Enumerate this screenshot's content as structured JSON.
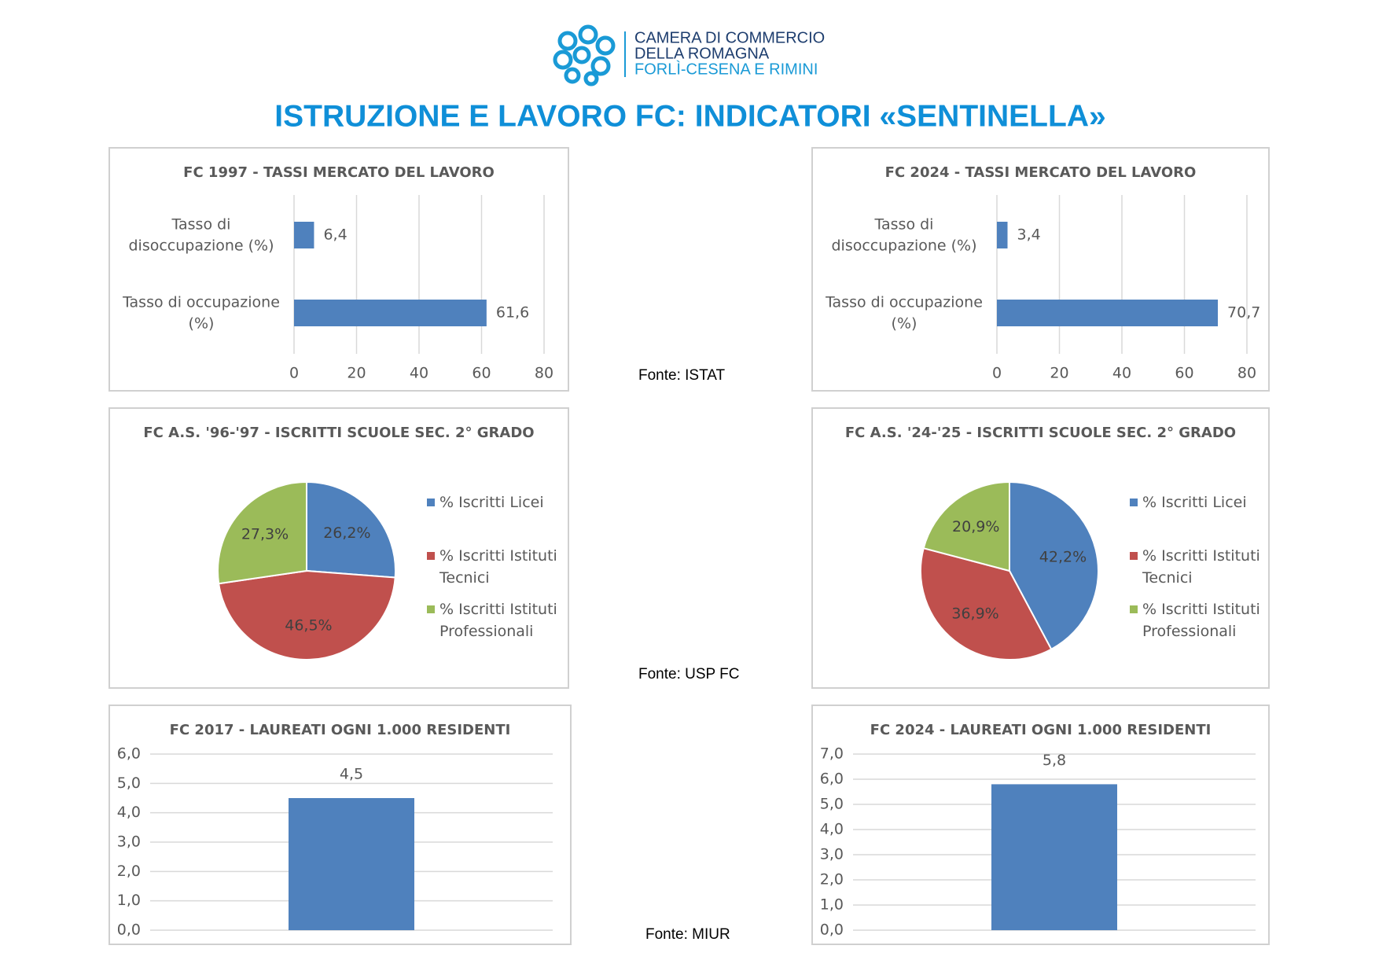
{
  "header": {
    "org_lines": [
      "CAMERA DI COMMERCIO",
      "DELLA ROMAGNA",
      "FORLÌ-CESENA E RIMINI"
    ]
  },
  "title": "ISTRUZIONE E LAVORO FC: INDICATORI «SENTINELLA»",
  "sources": [
    "Fonte: ISTAT",
    "Fonte: USP FC",
    "Fonte: MIUR"
  ],
  "chart_data": [
    {
      "type": "barh",
      "title": "FC 1997 - TASSI MERCATO DEL LAVORO",
      "categories": [
        "Tasso di disoccupazione (%)",
        "Tasso di occupazione (%)"
      ],
      "values": [
        6.4,
        61.6
      ],
      "value_labels": [
        "6,4",
        "61,6"
      ],
      "color": "#4f81bd",
      "xlim": [
        0,
        80
      ],
      "xticks": [
        0,
        20,
        40,
        60,
        80
      ],
      "grid": true
    },
    {
      "type": "barh",
      "title": "FC 2024 - TASSI MERCATO DEL LAVORO",
      "categories": [
        "Tasso di disoccupazione (%)",
        "Tasso di occupazione (%)"
      ],
      "values": [
        3.4,
        70.7
      ],
      "value_labels": [
        "3,4",
        "70,7"
      ],
      "color": "#4f81bd",
      "xlim": [
        0,
        80
      ],
      "xticks": [
        0,
        20,
        40,
        60,
        80
      ],
      "grid": true
    },
    {
      "type": "pie",
      "title": "FC A.S. '96-'97 - ISCRITTI SCUOLE SEC. 2° GRADO",
      "categories": [
        "% Iscritti Licei",
        "% Iscritti Istituti Tecnici",
        "% Iscritti Istituti Professionali"
      ],
      "values": [
        26.2,
        46.5,
        27.3
      ],
      "value_labels": [
        "26,2%",
        "46,5%",
        "27,3%"
      ],
      "colors": [
        "#4f81bd",
        "#c0504d",
        "#9bbb59"
      ],
      "legend": "right"
    },
    {
      "type": "pie",
      "title": "FC A.S. '24-'25 - ISCRITTI SCUOLE SEC. 2° GRADO",
      "categories": [
        "% Iscritti Licei",
        "% Iscritti Istituti Tecnici",
        "% Iscritti Istituti Professionali"
      ],
      "values": [
        42.2,
        36.9,
        20.9
      ],
      "value_labels": [
        "42,2%",
        "36,9%",
        "20,9%"
      ],
      "colors": [
        "#4f81bd",
        "#c0504d",
        "#9bbb59"
      ],
      "legend": "right"
    },
    {
      "type": "bar",
      "title": "FC 2017 - LAUREATI OGNI 1.000 RESIDENTI",
      "categories": [
        null
      ],
      "values": [
        4.5
      ],
      "value_labels": [
        "4,5"
      ],
      "color": "#4f81bd",
      "ylim": [
        0,
        6
      ],
      "yticks": [
        {
          "value": 0,
          "label": "0,0"
        },
        {
          "value": 1,
          "label": "1,0"
        },
        {
          "value": 2,
          "label": "2,0"
        },
        {
          "value": 3,
          "label": "3,0"
        },
        {
          "value": 4,
          "label": "4,0"
        },
        {
          "value": 5,
          "label": "5,0"
        },
        {
          "value": 6,
          "label": "6,0"
        }
      ],
      "grid": true
    },
    {
      "type": "bar",
      "title": "FC 2024 - LAUREATI OGNI 1.000 RESIDENTI",
      "categories": [
        null
      ],
      "values": [
        5.8
      ],
      "value_labels": [
        "5,8"
      ],
      "color": "#4f81bd",
      "ylim": [
        0,
        7
      ],
      "yticks": [
        {
          "value": 0,
          "label": "0,0"
        },
        {
          "value": 1,
          "label": "1,0"
        },
        {
          "value": 2,
          "label": "2,0"
        },
        {
          "value": 3,
          "label": "3,0"
        },
        {
          "value": 4,
          "label": "4,0"
        },
        {
          "value": 5,
          "label": "5,0"
        },
        {
          "value": 6,
          "label": "6,0"
        },
        {
          "value": 7,
          "label": "7,0"
        }
      ],
      "grid": true
    }
  ]
}
